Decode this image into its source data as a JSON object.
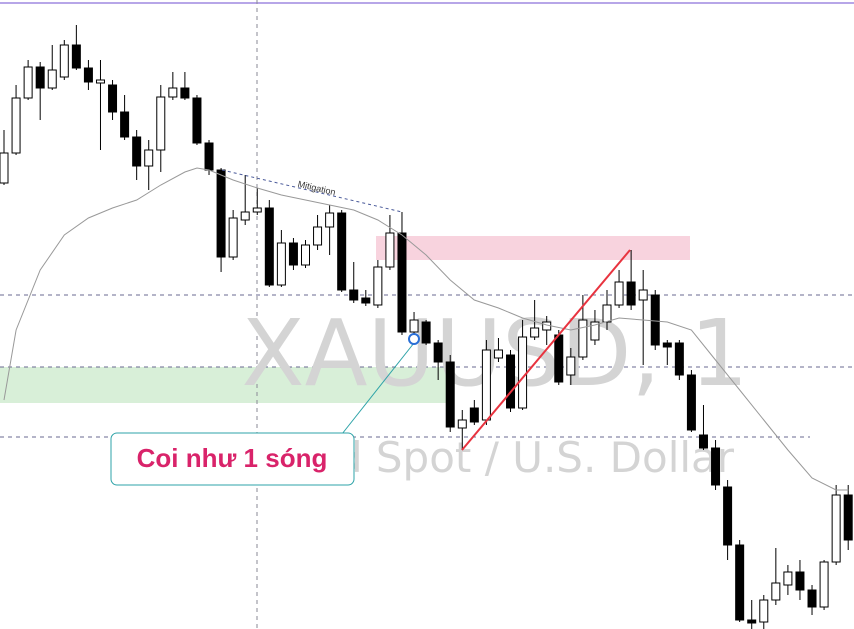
{
  "chart_data": {
    "type": "candlestick",
    "title": "XAUUSD, 1",
    "subtitle": "Gold Spot / U.S. Dollar",
    "annotations": [
      "Mitigation",
      "Coi như 1 sóng"
    ],
    "ylim": [
      0,
      629
    ],
    "up_color": "#ffffff",
    "down_color": "#000000",
    "series": [
      {
        "type": "candlestick",
        "open": [
          446,
          476,
          531,
          562,
          541,
          552,
          584,
          561,
          546,
          544,
          517,
          492,
          463,
          479,
          532,
          541,
          531,
          486,
          459,
          372,
          409,
          417,
          421,
          344,
          386,
          364,
          384,
          402,
          416,
          339,
          331,
          324,
          362,
          396,
          297,
          307,
          286,
          267,
          201,
          221,
          209,
          271,
          274,
          221,
          292,
          299,
          294,
          254,
          272,
          289,
          307,
          324,
          347,
          329,
          334,
          286,
          286,
          254,
          194,
          181,
          142,
          84,
          9,
          7,
          29,
          44,
          57,
          39,
          22,
          67,
          134
        ],
        "high": [
          499,
          544,
          569,
          567,
          584,
          589,
          604,
          569,
          569,
          549,
          534,
          499,
          489,
          544,
          557,
          557,
          534,
          489,
          461,
          419,
          454,
          441,
          429,
          399,
          391,
          389,
          414,
          424,
          419,
          367,
          339,
          369,
          414,
          417,
          317,
          309,
          289,
          274,
          219,
          229,
          289,
          291,
          279,
          309,
          329,
          313,
          299,
          281,
          334,
          319,
          339,
          359,
          379,
          359,
          339,
          289,
          289,
          259,
          224,
          189,
          149,
          89,
          29,
          34,
          81,
          64,
          69,
          44,
          69,
          144,
          144
        ],
        "low": [
          444,
          474,
          529,
          509,
          539,
          549,
          559,
          539,
          479,
          509,
          489,
          449,
          439,
          457,
          529,
          529,
          484,
          454,
          357,
          369,
          404,
          414,
          342,
          342,
          359,
          361,
          379,
          374,
          337,
          326,
          323,
          321,
          359,
          294,
          289,
          284,
          249,
          197,
          179,
          204,
          204,
          267,
          217,
          219,
          289,
          284,
          244,
          244,
          269,
          284,
          299,
          321,
          319,
          264,
          279,
          264,
          249,
          197,
          179,
          139,
          69,
          7,
          0,
          0,
          24,
          34,
          29,
          14,
          19,
          64,
          79
        ],
        "close": [
          476,
          531,
          562,
          541,
          559,
          584,
          561,
          547,
          549,
          517,
          492,
          463,
          479,
          532,
          541,
          531,
          486,
          459,
          372,
          411,
          417,
          421,
          344,
          386,
          364,
          384,
          402,
          416,
          339,
          329,
          326,
          362,
          396,
          297,
          309,
          286,
          267,
          202,
          209,
          207,
          279,
          279,
          221,
          292,
          301,
          307,
          247,
          272,
          309,
          307,
          324,
          347,
          324,
          339,
          284,
          282,
          254,
          199,
          181,
          144,
          84,
          9,
          6,
          29,
          46,
          57,
          39,
          22,
          67,
          134,
          89
        ]
      },
      {
        "type": "line",
        "color": "#999999",
        "x": [
          0,
          1,
          3,
          5,
          7,
          9,
          11,
          13,
          15,
          16,
          17,
          19,
          21,
          23,
          25,
          27,
          29,
          31,
          33,
          35,
          37,
          39,
          41,
          43,
          45,
          47,
          49,
          51,
          53,
          55,
          57,
          59,
          61,
          63,
          65,
          67,
          69,
          70
        ],
        "values": [
          229,
          299,
          359,
          394,
          411,
          421,
          429,
          444,
          457,
          461,
          459,
          449,
          441,
          434,
          429,
          424,
          419,
          409,
          394,
          374,
          349,
          329,
          321,
          311,
          304,
          299,
          304,
          311,
          309,
          307,
          299,
          269,
          239,
          209,
          179,
          151,
          139,
          139
        ]
      }
    ]
  }
}
